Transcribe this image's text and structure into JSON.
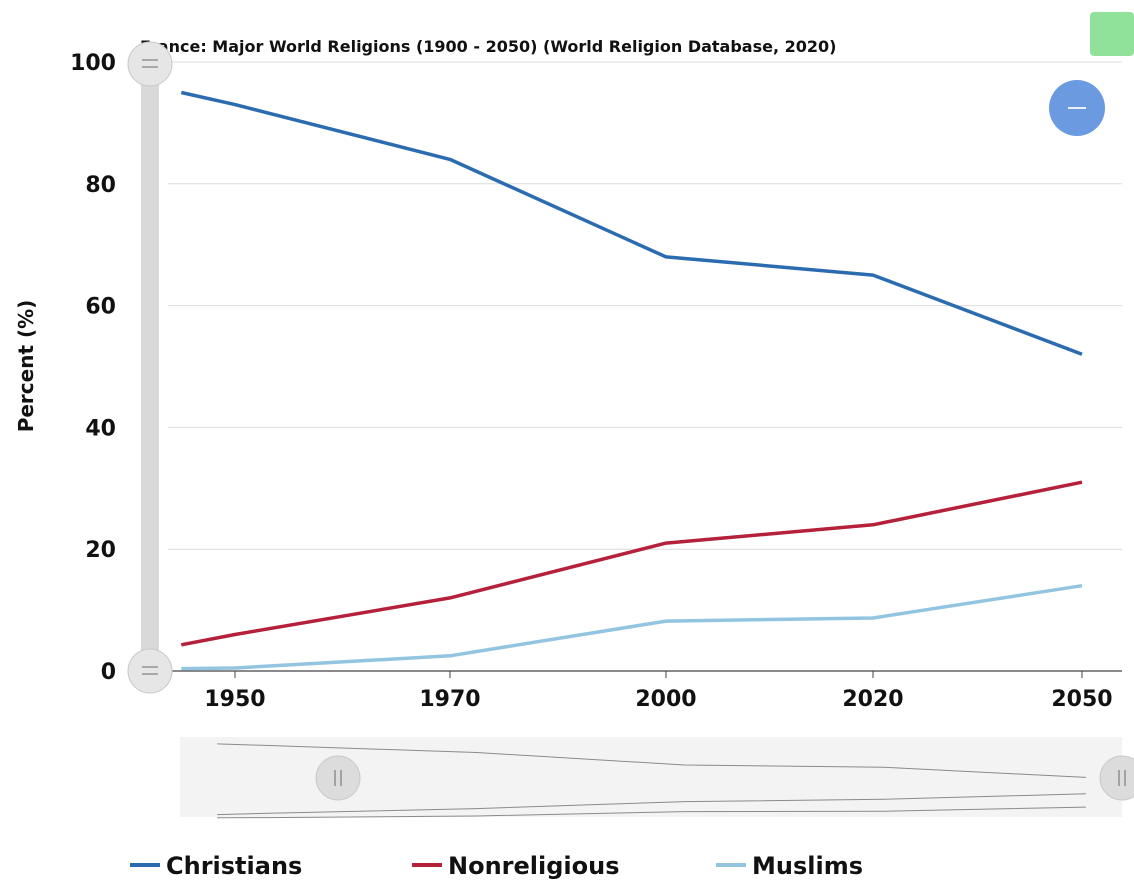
{
  "chart_data": {
    "type": "line",
    "title": "France: Major World Religions (1900 - 2050) (World Religion Database, 2020)",
    "ylabel": "Percent (%)",
    "xlabel": "",
    "ylim": [
      0,
      100
    ],
    "xlim": [
      1945,
      2050
    ],
    "yticks": [
      0,
      20,
      40,
      60,
      80,
      100
    ],
    "xticks": [
      1950,
      1970,
      2000,
      2020,
      2050
    ],
    "grid": true,
    "legend_position": "bottom",
    "x": [
      1945,
      1950,
      1970,
      2000,
      2020,
      2050
    ],
    "series": [
      {
        "name": "Christians",
        "color": "#2b6cb0",
        "values": [
          95,
          93,
          84,
          68,
          65,
          52
        ]
      },
      {
        "name": "Nonreligious",
        "color": "#b5203a",
        "values": [
          4.3,
          6,
          12,
          21,
          24,
          31
        ]
      },
      {
        "name": "Muslims",
        "color": "#93c5e0",
        "values": [
          0.4,
          0.5,
          2.5,
          8.2,
          8.7,
          14
        ]
      }
    ]
  },
  "controls": {
    "zoom_out_icon": "minus-icon",
    "slider_handle_icon": "equals-icon",
    "range_handle_icon": "pause-bars-icon",
    "accent": "#6b9ae0",
    "indicator_color": "#90e29a"
  }
}
